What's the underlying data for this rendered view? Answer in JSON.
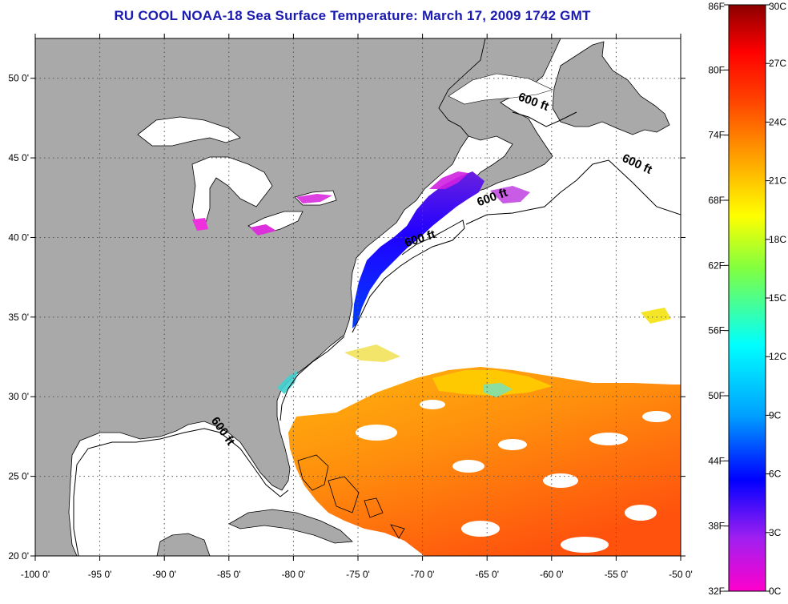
{
  "title": "RU COOL  NOAA-18  Sea Surface Temperature:  March 17, 2009 1742 GMT",
  "map": {
    "lon_range": [
      -100,
      -50
    ],
    "lat_range": [
      20,
      52.5
    ],
    "x_ticks": [
      {
        "value": -100,
        "label": "-100 0'"
      },
      {
        "value": -95,
        "label": "-95 0'"
      },
      {
        "value": -90,
        "label": "-90 0'"
      },
      {
        "value": -85,
        "label": "-85 0'"
      },
      {
        "value": -80,
        "label": "-80 0'"
      },
      {
        "value": -75,
        "label": "-75 0'"
      },
      {
        "value": -70,
        "label": "-70 0'"
      },
      {
        "value": -65,
        "label": "-65 0'"
      },
      {
        "value": -60,
        "label": "-60 0'"
      },
      {
        "value": -55,
        "label": "-55 0'"
      },
      {
        "value": -50,
        "label": "-50 0'"
      }
    ],
    "y_ticks": [
      {
        "value": 20,
        "label": "20 0'"
      },
      {
        "value": 25,
        "label": "25 0'"
      },
      {
        "value": 30,
        "label": "30 0'"
      },
      {
        "value": 35,
        "label": "35 0'"
      },
      {
        "value": 40,
        "label": "40 0'"
      },
      {
        "value": 45,
        "label": "45 0'"
      },
      {
        "value": 50,
        "label": "50 0'"
      }
    ],
    "contour_labels": [
      {
        "text": "600 ft",
        "lon": -61.5,
        "lat": 48.3,
        "rotate": 20
      },
      {
        "text": "600 ft",
        "lon": -53.5,
        "lat": 44.4,
        "rotate": 25
      },
      {
        "text": "600 ft",
        "lon": -64.5,
        "lat": 42.3,
        "rotate": -20
      },
      {
        "text": "600 ft",
        "lon": -70.1,
        "lat": 39.7,
        "rotate": -18
      },
      {
        "text": "600 ft",
        "lon": -85.7,
        "lat": 27.7,
        "rotate": 55
      }
    ],
    "colors": {
      "land": "#a9a9a9",
      "ocean_no_data": "#ffffff",
      "grid": "#555555"
    }
  },
  "colorbar": {
    "f_labels": [
      "86F",
      "80F",
      "74F",
      "68F",
      "62F",
      "56F",
      "50F",
      "44F",
      "38F",
      "32F"
    ],
    "c_labels": [
      "30C",
      "27C",
      "24C",
      "21C",
      "18C",
      "15C",
      "12C",
      "9C",
      "6C",
      "3C",
      "0C"
    ],
    "stops": [
      "#ff00cc",
      "#a020f0",
      "#0000ff",
      "#00a0ff",
      "#00ffff",
      "#80ff40",
      "#ffff00",
      "#ffa000",
      "#ff4000",
      "#ff0000",
      "#8b0000"
    ]
  }
}
